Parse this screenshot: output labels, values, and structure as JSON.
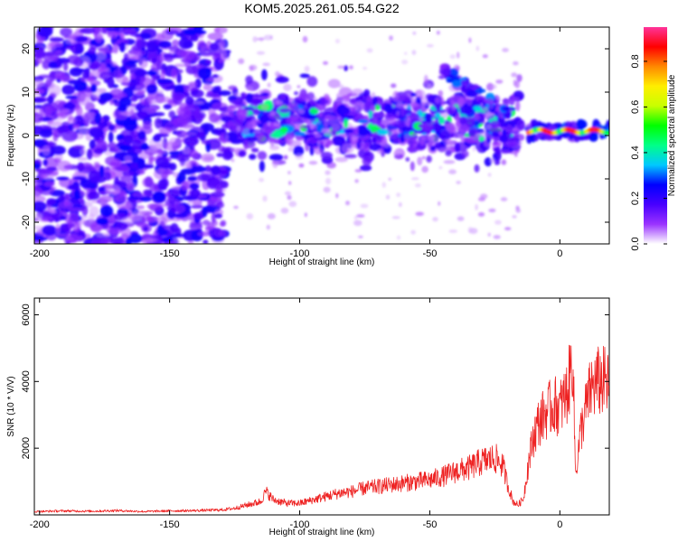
{
  "title": "KOM5.2025.261.05.54.G22",
  "chart_data": [
    {
      "type": "heatmap",
      "name": "spectrogram",
      "xlabel": "Height of straight line (km)",
      "ylabel": "Frequency (Hz)",
      "xlim": [
        -202,
        19
      ],
      "ylim": [
        -25,
        25
      ],
      "xticks": [
        -200,
        -150,
        -100,
        -50,
        0
      ],
      "yticks": [
        -20,
        -10,
        0,
        10,
        20
      ],
      "grid": false,
      "colorbar": {
        "label": "Normalized spectral amplitude",
        "range": [
          0,
          0.95
        ],
        "ticks": [
          0.0,
          0.2,
          0.4,
          0.6,
          0.8
        ],
        "colormap": [
          "#ffffff",
          "#9a33ff",
          "#4800ff",
          "#0000ff",
          "#00c8ff",
          "#00ff88",
          "#00ff00",
          "#c8ff00",
          "#ffee00",
          "#ff8800",
          "#ff0000",
          "#ff3399"
        ]
      },
      "features": [
        {
          "label": "broadband noise",
          "x_range": [
            -202,
            -128
          ],
          "freq_range": [
            -25,
            25
          ],
          "amplitude": 0.15
        },
        {
          "label": "signal band",
          "x_range": [
            -128,
            -15
          ],
          "freq_center": 3,
          "freq_halfwidth": 7,
          "amplitude": 0.3
        },
        {
          "label": "upper arc",
          "x_range": [
            -45,
            -20
          ],
          "freq_range": [
            5,
            15
          ],
          "amplitude": 0.25
        },
        {
          "label": "strong line",
          "x_range": [
            -12,
            19
          ],
          "freq_center": 1,
          "amplitude": 0.9
        }
      ]
    },
    {
      "type": "line",
      "name": "snr",
      "xlabel": "Height of straight line (km)",
      "ylabel": "SNR (10 * V/V)",
      "xlim": [
        -202,
        19
      ],
      "ylim": [
        0,
        6500
      ],
      "xticks": [
        -200,
        -150,
        -100,
        -50,
        0
      ],
      "yticks": [
        2000,
        4000,
        6000
      ],
      "grid": false,
      "color": "#ee2222",
      "series": [
        {
          "name": "SNR",
          "x": [
            -202,
            -190,
            -180,
            -170,
            -160,
            -150,
            -140,
            -130,
            -125,
            -120,
            -115,
            -113,
            -110,
            -105,
            -100,
            -95,
            -90,
            -85,
            -80,
            -75,
            -70,
            -65,
            -60,
            -55,
            -50,
            -45,
            -40,
            -35,
            -30,
            -25,
            -22,
            -20,
            -18,
            -16,
            -14,
            -12,
            -10,
            -8,
            -5,
            -2,
            0,
            3,
            5,
            6,
            8,
            10,
            12,
            15,
            17,
            19
          ],
          "values": [
            100,
            120,
            110,
            130,
            100,
            120,
            130,
            150,
            200,
            300,
            400,
            700,
            450,
            350,
            350,
            450,
            550,
            650,
            700,
            800,
            850,
            900,
            950,
            1000,
            1050,
            1150,
            1300,
            1400,
            1600,
            1700,
            1500,
            900,
            400,
            300,
            500,
            1600,
            2400,
            2800,
            3100,
            3300,
            3200,
            3700,
            4800,
            1200,
            2500,
            3200,
            3800,
            4000,
            4000,
            3800
          ]
        }
      ]
    }
  ]
}
